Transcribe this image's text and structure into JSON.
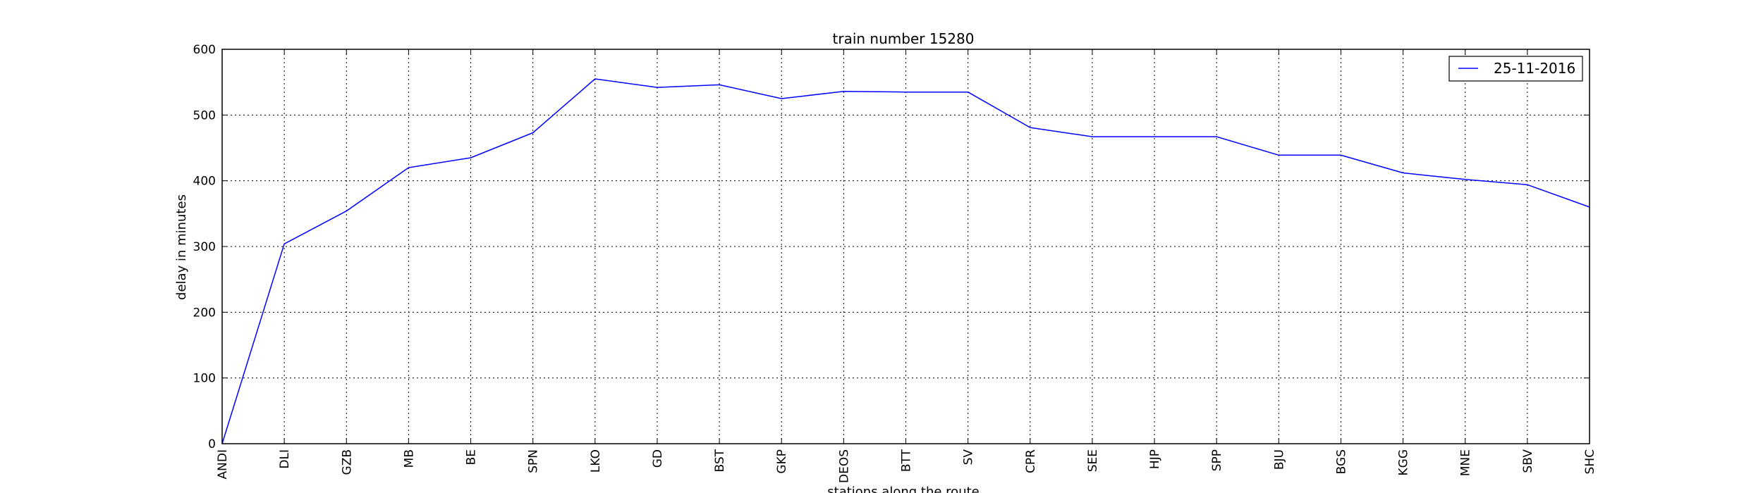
{
  "chart_data": {
    "type": "line",
    "title": "train number 15280",
    "xlabel": "stations along the route",
    "ylabel": "delay in minutes",
    "categories": [
      "ANDI",
      "DLI",
      "GZB",
      "MB",
      "BE",
      "SPN",
      "LKO",
      "GD",
      "BST",
      "GKP",
      "DEOS",
      "BTT",
      "SV",
      "CPR",
      "SEE",
      "HJP",
      "SPP",
      "BJU",
      "BGS",
      "KGG",
      "MNE",
      "SBV",
      "SHC"
    ],
    "series": [
      {
        "name": "25-11-2016",
        "color": "#0000ff",
        "values": [
          0,
          304,
          354,
          420,
          435,
          473,
          555,
          542,
          546,
          525,
          536,
          535,
          535,
          481,
          467,
          467,
          467,
          439,
          439,
          412,
          402,
          394,
          360
        ]
      }
    ],
    "ylim": [
      0,
      600
    ],
    "yticks": [
      0,
      100,
      200,
      300,
      400,
      500,
      600
    ],
    "grid": true,
    "legend_position": "top-right"
  }
}
